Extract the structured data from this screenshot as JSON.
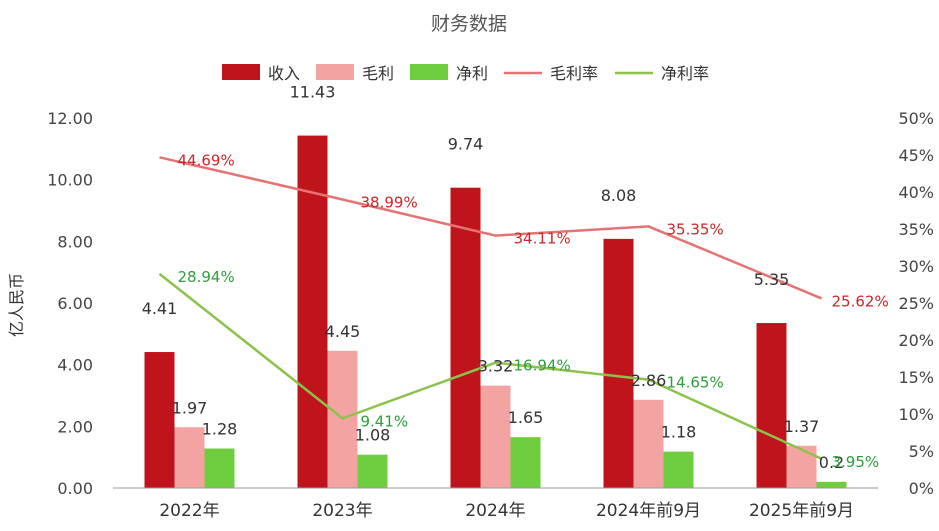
{
  "chart_data": {
    "type": "bar",
    "title": "财务数据",
    "ylabel": "亿人民币",
    "y2label": "",
    "categories": [
      "2022年",
      "2023年",
      "2024年",
      "2024年前9月",
      "2025年前9月"
    ],
    "ylim": [
      0,
      12
    ],
    "yticks": [
      "0.00",
      "2.00",
      "4.00",
      "6.00",
      "8.00",
      "10.00",
      "12.00"
    ],
    "y2lim": [
      0,
      50
    ],
    "y2ticks": [
      "0%",
      "5%",
      "10%",
      "15%",
      "20%",
      "25%",
      "30%",
      "35%",
      "40%",
      "45%",
      "50%"
    ],
    "legend_position": "top",
    "grid": false,
    "series": [
      {
        "name": "收入",
        "kind": "bar",
        "color": "#c0141c",
        "values": [
          4.41,
          11.43,
          9.74,
          8.08,
          5.35
        ],
        "labels": [
          "4.41",
          "11.43",
          "9.74",
          "8.08",
          "5.35"
        ]
      },
      {
        "name": "毛利",
        "kind": "bar",
        "color": "#f4a3a3",
        "values": [
          1.97,
          4.45,
          3.32,
          2.86,
          1.37
        ],
        "labels": [
          "1.97",
          "4.45",
          "3.32",
          "2.86",
          "1.37"
        ]
      },
      {
        "name": "净利",
        "kind": "bar",
        "color": "#6fce3f",
        "values": [
          1.28,
          1.08,
          1.65,
          1.18,
          0.2
        ],
        "labels": [
          "1.28",
          "1.08",
          "1.65",
          "1.18",
          "0.2"
        ]
      },
      {
        "name": "毛利率",
        "kind": "line",
        "axis": "right",
        "color": "#e57373",
        "label_color": "#c62828",
        "values": [
          44.69,
          38.99,
          34.11,
          35.35,
          25.62
        ],
        "labels": [
          "44.69%",
          "38.99%",
          "34.11%",
          "35.35%",
          "25.62%"
        ]
      },
      {
        "name": "净利率",
        "kind": "line",
        "axis": "right",
        "color": "#8bc34a",
        "label_color": "#2e9e3e",
        "values": [
          28.94,
          9.41,
          16.94,
          14.65,
          3.95
        ],
        "labels": [
          "28.94%",
          "9.41%",
          "16.94%",
          "14.65%",
          "3.95%"
        ]
      }
    ]
  }
}
